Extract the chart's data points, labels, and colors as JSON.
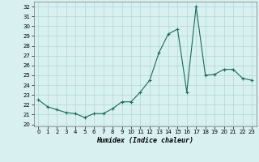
{
  "x": [
    0,
    1,
    2,
    3,
    4,
    5,
    6,
    7,
    8,
    9,
    10,
    11,
    12,
    13,
    14,
    15,
    16,
    17,
    18,
    19,
    20,
    21,
    22,
    23
  ],
  "y": [
    22.5,
    21.8,
    21.5,
    21.2,
    21.1,
    20.7,
    21.1,
    21.1,
    21.6,
    22.3,
    22.3,
    23.3,
    24.5,
    27.3,
    29.2,
    29.7,
    23.3,
    32.0,
    25.0,
    25.1,
    25.6,
    25.6,
    24.7,
    24.5
  ],
  "line_color": "#1a6b5a",
  "marker": "+",
  "marker_size": 3.5,
  "marker_linewidth": 0.8,
  "line_width": 0.8,
  "bg_color": "#d8f0f0",
  "grid_color": "#afd8d8",
  "xlabel": "Humidex (Indice chaleur)",
  "ylabel_ticks": [
    20,
    21,
    22,
    23,
    24,
    25,
    26,
    27,
    28,
    29,
    30,
    31,
    32
  ],
  "ylim": [
    19.8,
    32.5
  ],
  "xlim": [
    -0.5,
    23.5
  ],
  "tick_fontsize": 5.0,
  "xlabel_fontsize": 6.0
}
